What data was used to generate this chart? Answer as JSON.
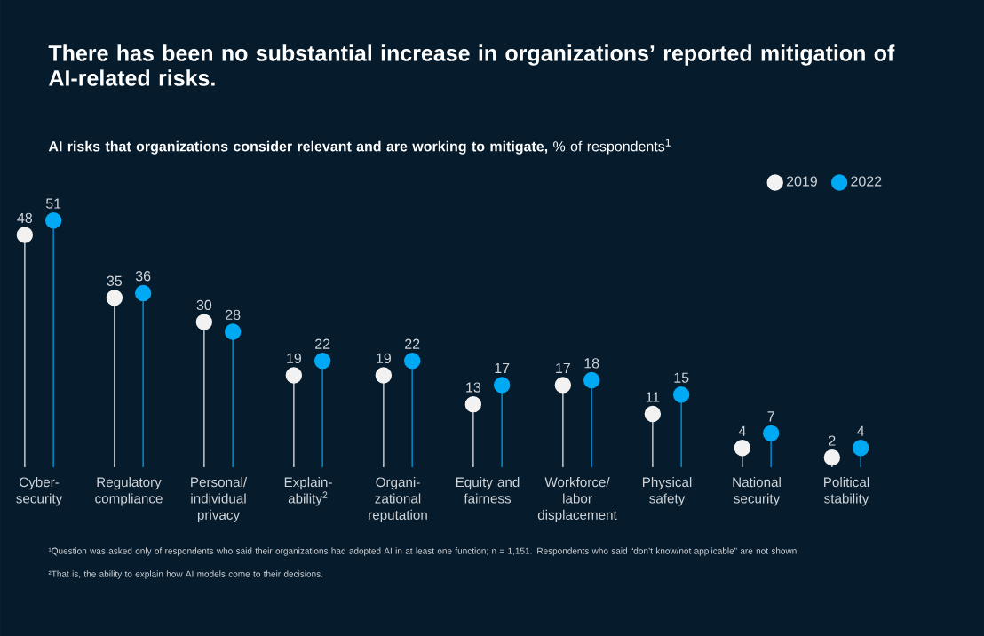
{
  "chart_data": {
    "type": "lollipop",
    "title": "There has been no substantial increase in organizations’ reported mitigation of AI-related risks.",
    "subtitle": "**AI risks that organizations consider relevant and are working to mitigate,** % of respondents$^{1}$",
    "categories": [
      "Cyber-security",
      "Regulatory compliance",
      "Personal/ individual privacy",
      "Explain-ability$^{2}$",
      "Organi-zational reputation",
      "Equity and fairness",
      "Workforce/ labor displacement",
      "Physical safety",
      "National security",
      "Political stability"
    ],
    "series": [
      {
        "name": "2019",
        "color": "#f2f2f2",
        "values": [
          48,
          35,
          30,
          19,
          19,
          13,
          17,
          11,
          4,
          2
        ]
      },
      {
        "name": "2022",
        "color": "#00a9f4",
        "values": [
          51,
          36,
          28,
          22,
          22,
          17,
          18,
          15,
          7,
          4
        ]
      }
    ],
    "data_labels": true,
    "legend": "top right",
    "tick_labels": "x",
    "marker": "circle",
    "annotations": [
      "¹Question was asked only of respondents who said their organizations had adopted AI in at least one function; n = 1,151. Respondents who said “don’t know/not applicable” are not shown.",
      "²That is, the ability to explain how AI models come to their decisions."
    ]
  }
}
